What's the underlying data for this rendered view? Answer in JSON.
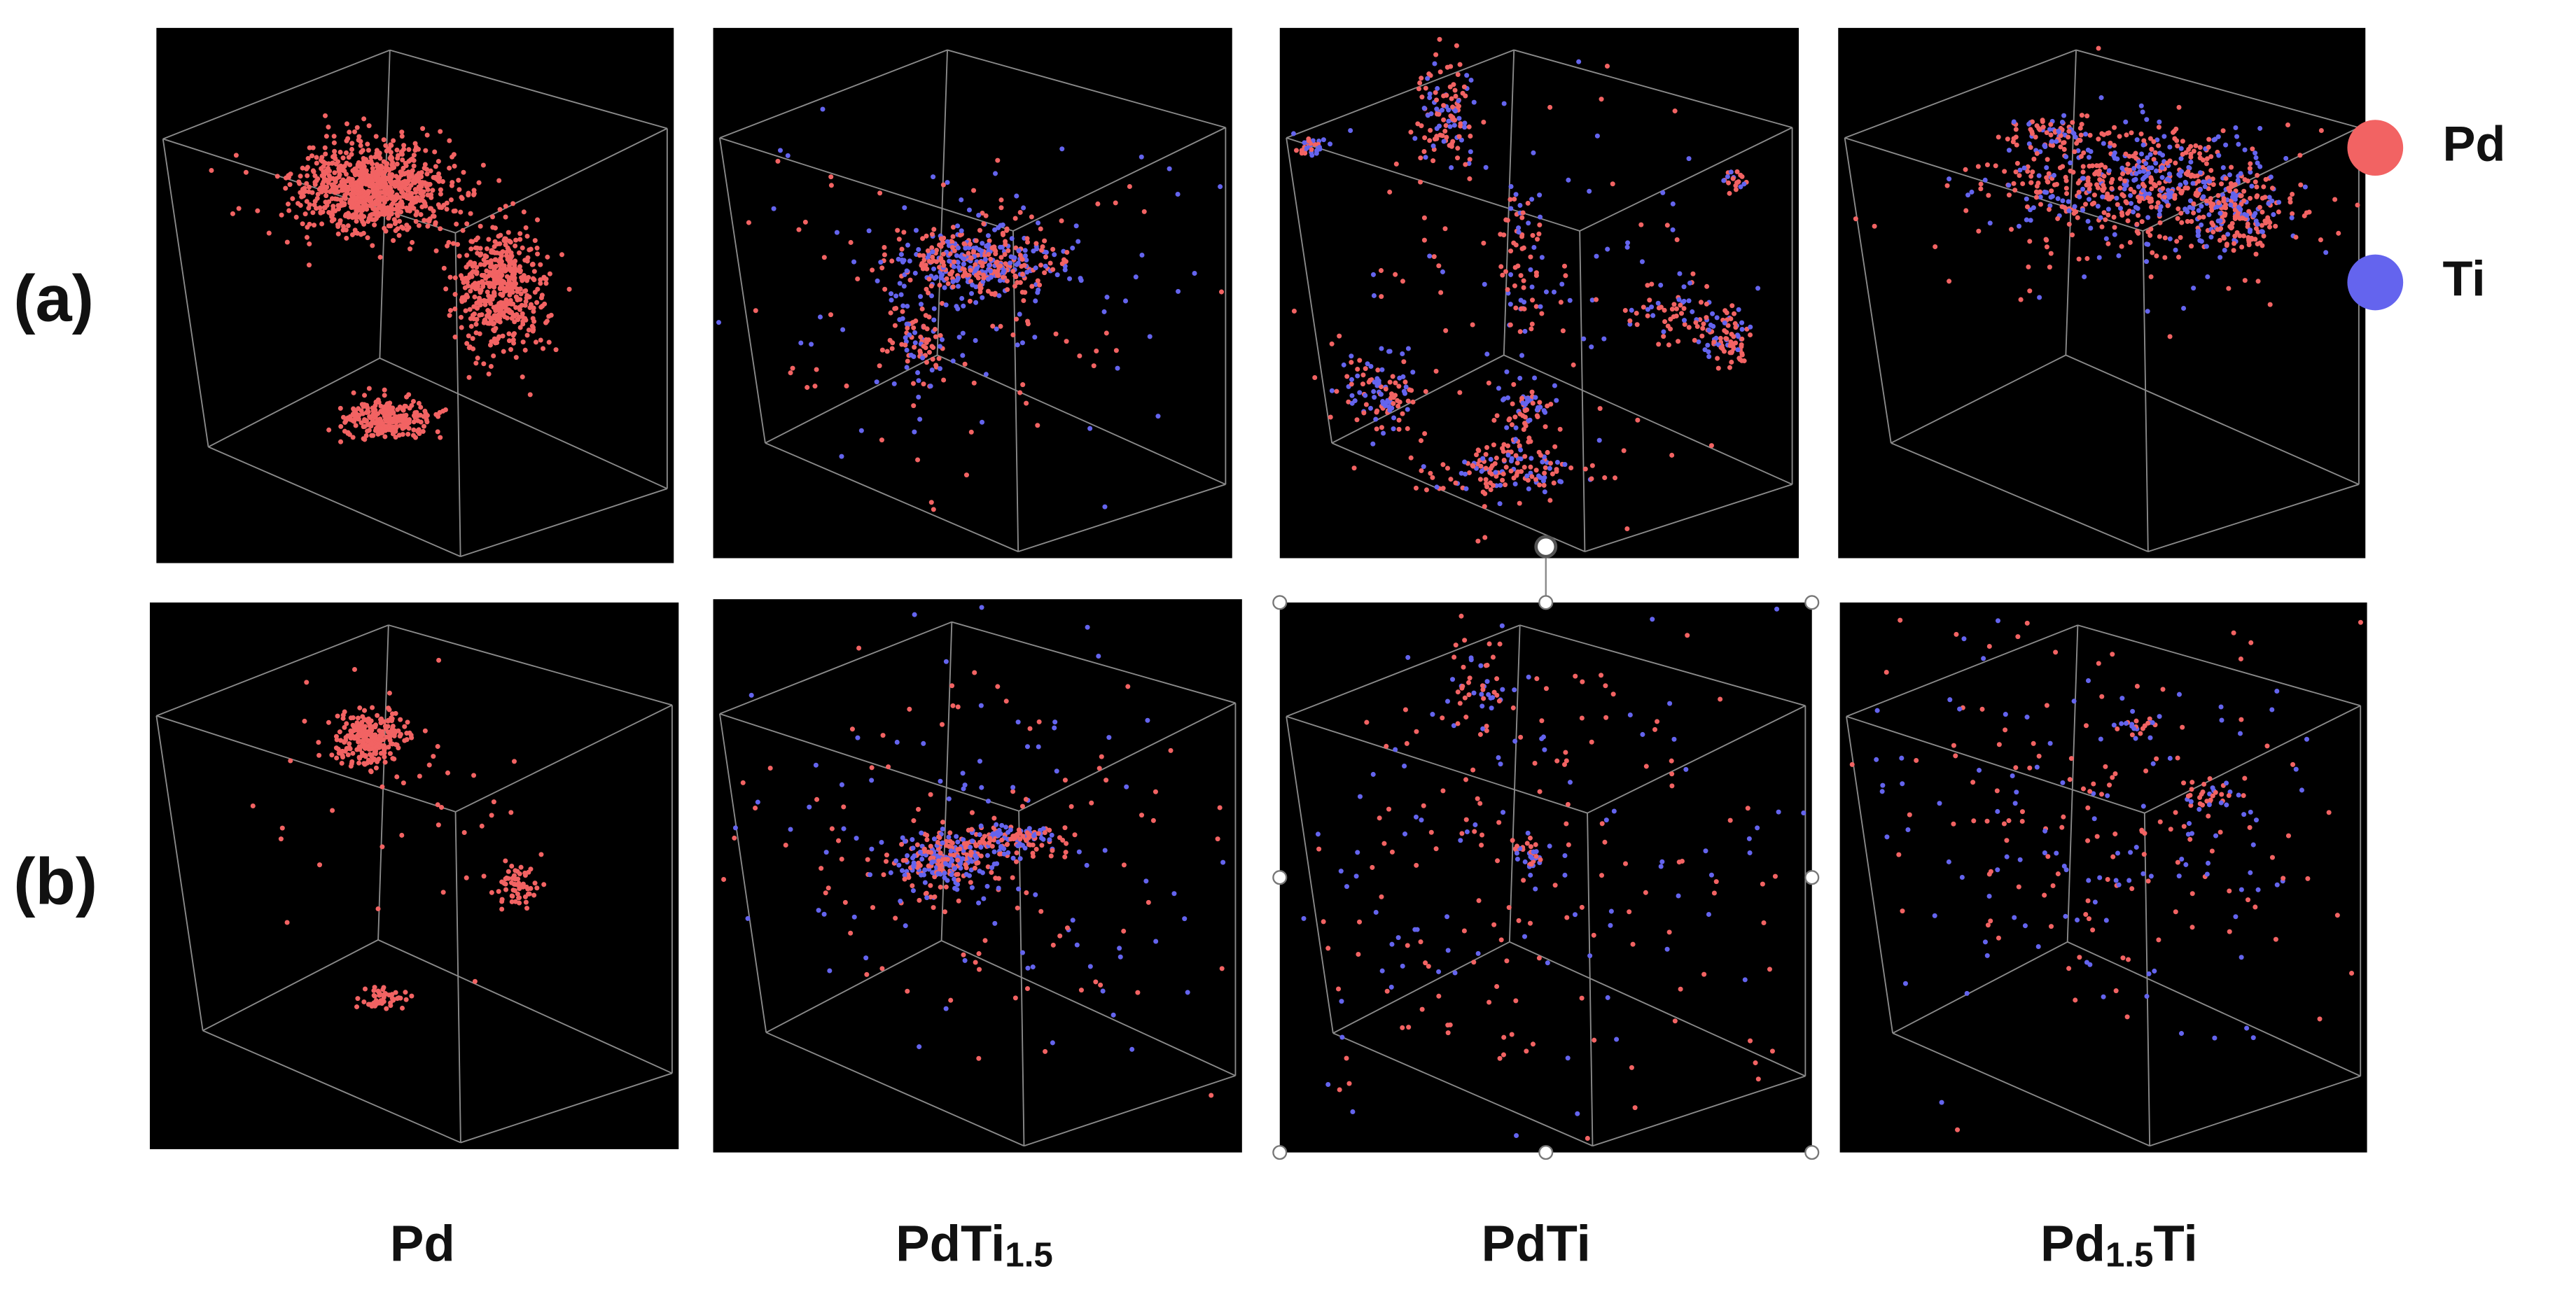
{
  "row_labels": [
    "(a)",
    "(b)"
  ],
  "columns": [
    {
      "label": [
        {
          "text": "Pd"
        }
      ]
    },
    {
      "label": [
        {
          "text": "PdTi"
        },
        {
          "text": "1.5",
          "sub": true
        }
      ]
    },
    {
      "label": [
        {
          "text": "PdTi"
        }
      ]
    },
    {
      "label": [
        {
          "text": "Pd"
        },
        {
          "text": "1.5",
          "sub": true
        },
        {
          "text": "Ti"
        }
      ]
    }
  ],
  "legend": [
    {
      "name": "Pd",
      "color": "#f26363"
    },
    {
      "name": "Ti",
      "color": "#6464ee"
    }
  ]
}
